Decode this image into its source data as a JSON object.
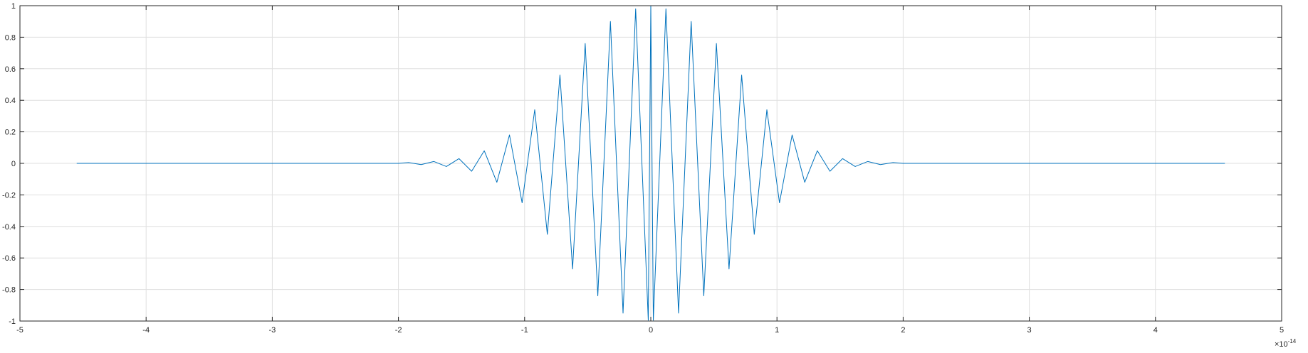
{
  "chart_data": {
    "type": "line",
    "title": "",
    "xlabel": "",
    "ylabel": "",
    "x_exponent": {
      "base": "×10",
      "power": "-14"
    },
    "xlim": [
      -5e-14,
      5e-14
    ],
    "ylim": [
      -1,
      1
    ],
    "xticks": [
      -5e-14,
      -4e-14,
      -3e-14,
      -2e-14,
      -1e-14,
      0,
      1e-14,
      2e-14,
      3e-14,
      4e-14,
      5e-14
    ],
    "xtick_labels": [
      "-5",
      "-4",
      "-3",
      "-2",
      "-1",
      "0",
      "1",
      "2",
      "3",
      "4",
      "5"
    ],
    "yticks": [
      -1,
      -0.8,
      -0.6,
      -0.4,
      -0.2,
      0,
      0.2,
      0.4,
      0.6,
      0.8,
      1
    ],
    "ytick_labels": [
      "-1",
      "-0.8",
      "-0.6",
      "-0.4",
      "-0.2",
      "0",
      "0.2",
      "0.4",
      "0.6",
      "0.8",
      "1"
    ],
    "grid": true,
    "box": true,
    "line_color": "#0072BD",
    "series": [
      {
        "x": [
          -4.55e-14,
          -4e-14,
          -3e-14,
          -2.5e-14,
          -2e-14,
          -1.92e-14,
          -1.82e-14,
          -1.72e-14,
          -1.62e-14,
          -1.52e-14,
          -1.42e-14,
          -1.32e-14,
          -1.22e-14,
          -1.12e-14,
          -1.02e-14,
          -9.2e-15,
          -8.2e-15,
          -7.2e-15,
          -6.2e-15,
          -5.2e-15,
          -4.2e-15,
          -3.2e-15,
          -2.2e-15,
          -1.2e-15,
          -2e-16,
          0,
          2e-16,
          1.2e-15,
          2.2e-15,
          3.2e-15,
          4.2e-15,
          5.2e-15,
          6.2e-15,
          7.2e-15,
          8.2e-15,
          9.2e-15,
          1.02e-14,
          1.12e-14,
          1.22e-14,
          1.32e-14,
          1.42e-14,
          1.52e-14,
          1.62e-14,
          1.72e-14,
          1.82e-14,
          1.92e-14,
          2e-14,
          2.5e-14,
          3e-14,
          4e-14,
          4.55e-14
        ],
        "y": [
          0,
          0,
          0,
          0,
          0,
          0.005,
          -0.008,
          0.012,
          -0.02,
          0.03,
          -0.05,
          0.08,
          -0.12,
          0.18,
          -0.25,
          0.34,
          -0.45,
          0.56,
          -0.67,
          0.76,
          -0.84,
          0.9,
          -0.95,
          0.98,
          -0.995,
          1.0,
          -0.995,
          0.98,
          -0.95,
          0.9,
          -0.84,
          0.76,
          -0.67,
          0.56,
          -0.45,
          0.34,
          -0.25,
          0.18,
          -0.12,
          0.08,
          -0.05,
          0.03,
          -0.02,
          0.012,
          -0.008,
          0.005,
          0,
          0,
          0,
          0,
          0
        ]
      }
    ]
  }
}
